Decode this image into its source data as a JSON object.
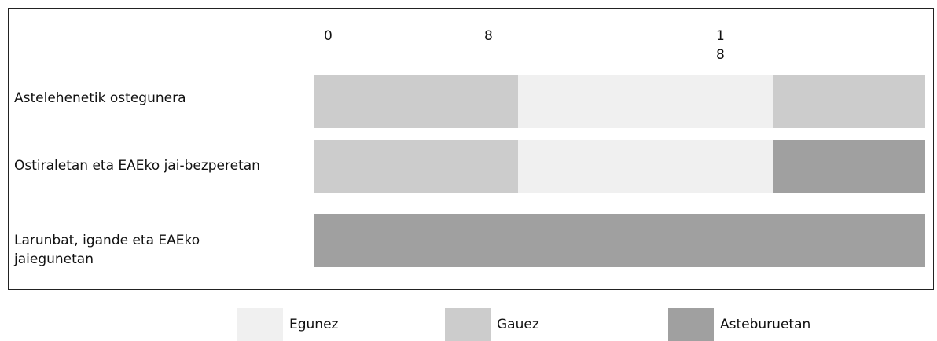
{
  "chart_data": {
    "type": "bar",
    "subtype": "horizontal-segmented-timeline",
    "x_ticks": [
      "0",
      "8",
      "18"
    ],
    "xlim": [
      0,
      24
    ],
    "grid": false,
    "legend_placement": "bottom",
    "categories": [
      "Astelehenetik ostegunera",
      "Ostiraletan eta EAEko jai-bezperetan",
      "Larunbat, igande eta EAEko jaiegunetan"
    ],
    "legend": [
      {
        "name": "Egunez",
        "color": "#f0f0f0"
      },
      {
        "name": "Gauez",
        "color": "#cccccc"
      },
      {
        "name": "Asteburuetan",
        "color": "#a0a0a0"
      }
    ],
    "rows": [
      {
        "label": "Astelehenetik ostegunera",
        "segments": [
          {
            "start": 0,
            "end": 8,
            "period": "Gauez"
          },
          {
            "start": 8,
            "end": 18,
            "period": "Egunez"
          },
          {
            "start": 18,
            "end": 24,
            "period": "Gauez"
          }
        ]
      },
      {
        "label": "Ostiraletan eta EAEko jai-bezperetan",
        "segments": [
          {
            "start": 0,
            "end": 8,
            "period": "Gauez"
          },
          {
            "start": 8,
            "end": 18,
            "period": "Egunez"
          },
          {
            "start": 18,
            "end": 24,
            "period": "Asteburuetan"
          }
        ]
      },
      {
        "label": "Larunbat, igande eta EAEko jaiegunetan",
        "segments": [
          {
            "start": 0,
            "end": 24,
            "period": "Asteburuetan"
          }
        ]
      }
    ]
  }
}
